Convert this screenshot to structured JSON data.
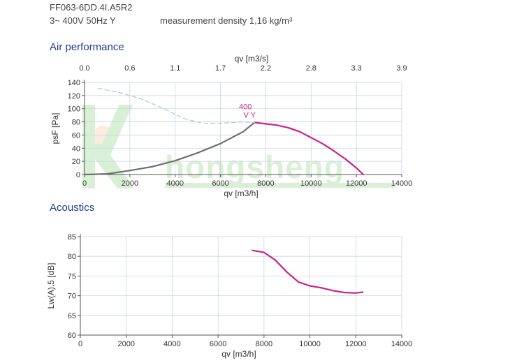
{
  "header": {
    "model": "FF063-6DD.4I.A5R2",
    "supply": "3~ 400V 50Hz Y",
    "density": "measurement density 1,16 kg/m³"
  },
  "watermark": {
    "text": "hongsheng",
    "color": "#5cbf47"
  },
  "colors": {
    "accent": "#cc1f8c",
    "grey_curve": "#6e6e6e",
    "grid": "#c9d3e2",
    "title": "#1f3f8f"
  },
  "chart_data": [
    {
      "type": "line",
      "section_title": "Air performance",
      "xlabel": "qv [m3/h]",
      "x2label": "qv [m3/s]",
      "ylabel": "psF [Pa]",
      "xlim": [
        0,
        14000
      ],
      "ylim": [
        0,
        140
      ],
      "xticks": [
        0,
        2000,
        4000,
        6000,
        8000,
        10000,
        12000,
        14000
      ],
      "x2ticks": [
        "0.0",
        "0.6",
        "1.1",
        "1.7",
        "2.2",
        "2.8",
        "3.3",
        "3.9"
      ],
      "yticks": [
        0,
        20,
        40,
        60,
        80,
        100,
        120,
        140
      ],
      "grid": true,
      "curve_label": [
        "400",
        "V Y"
      ],
      "series": [
        {
          "role": "operating",
          "color": "#cc1f8c",
          "x": [
            7500,
            8000,
            8500,
            9000,
            9500,
            10000,
            10500,
            11000,
            11500,
            12000,
            12300
          ],
          "y": [
            79,
            77,
            75,
            71,
            65,
            56,
            47,
            36,
            24,
            10,
            0
          ]
        },
        {
          "role": "system",
          "color": "#6e6e6e",
          "x": [
            0,
            1000,
            2000,
            3000,
            4000,
            5000,
            6000,
            7000,
            7500
          ],
          "y": [
            0,
            1,
            6,
            12,
            21,
            33,
            47,
            65,
            79
          ]
        },
        {
          "role": "unstable",
          "color": "#b9c6e0",
          "dashed": true,
          "x": [
            600,
            1500,
            2500,
            3500,
            4400,
            5200,
            6000,
            7000,
            7500
          ],
          "y": [
            131,
            125,
            115,
            100,
            85,
            78,
            78,
            80,
            79
          ]
        }
      ]
    },
    {
      "type": "line",
      "section_title": "Acoustics",
      "xlabel": "qv [m3/h]",
      "ylabel": "Lw(A),5 [dB]",
      "xlim": [
        0,
        14000
      ],
      "ylim": [
        60,
        85
      ],
      "xticks": [
        0,
        2000,
        4000,
        6000,
        8000,
        10000,
        12000,
        14000
      ],
      "yticks": [
        60,
        65,
        70,
        75,
        80,
        85
      ],
      "grid": true,
      "series": [
        {
          "role": "sound",
          "color": "#cc1f8c",
          "x": [
            7500,
            8000,
            8500,
            9000,
            9500,
            10000,
            10500,
            11000,
            11500,
            12000,
            12300
          ],
          "y": [
            81.5,
            81,
            79,
            76,
            73.5,
            72.5,
            72,
            71.3,
            70.8,
            70.7,
            70.9
          ]
        }
      ]
    }
  ]
}
